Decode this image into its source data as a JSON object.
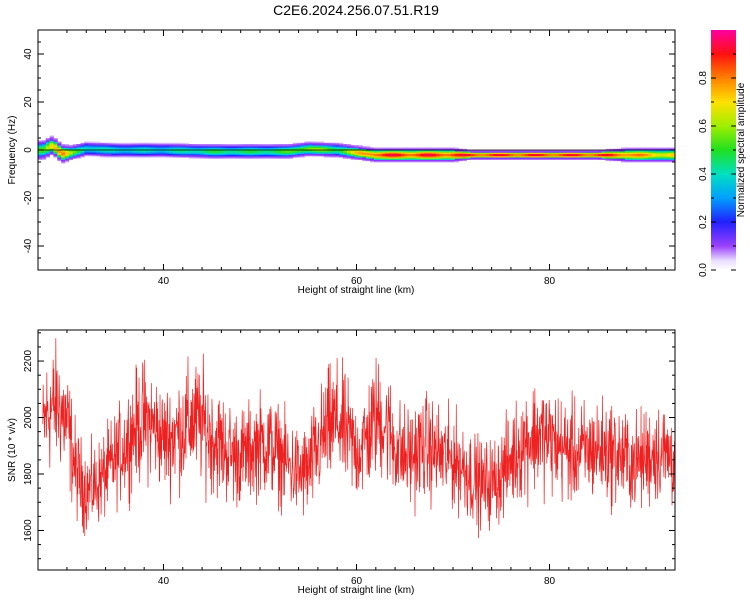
{
  "title": "C2E6.2024.256.07.51.R19",
  "colors": {
    "snr_line": "#ee2020",
    "axes": "#000000",
    "background": "#ffffff"
  },
  "chart_data": [
    {
      "type": "heatmap",
      "xlabel": "Height of straight line (km)",
      "ylabel": "Frequency (Hz)",
      "xlim": [
        27,
        93
      ],
      "ylim": [
        -50,
        50
      ],
      "x_ticks": [
        40,
        60,
        80
      ],
      "y_ticks": [
        -40,
        -20,
        0,
        20,
        40
      ],
      "colorbar": {
        "label": "Normalized spectral amplitude",
        "range": [
          0,
          1
        ],
        "ticks": [
          0.0,
          0.2,
          0.4,
          0.6,
          0.8
        ],
        "tick_labels": [
          "0.0",
          "0.2",
          "0.4",
          "0.6",
          "0.8"
        ],
        "colormap": "rainbow (white-violet-blue-cyan-green-yellow-orange-red-magenta)"
      },
      "ridge": {
        "description": "narrow band of peak amplitude near 0 Hz, drifting slightly negative with height",
        "x": [
          27.5,
          28.5,
          29.5,
          30.5,
          32,
          35,
          40,
          45,
          50,
          53,
          55,
          58,
          61,
          62,
          65,
          70,
          72,
          75,
          80,
          85,
          88,
          90,
          93
        ],
        "center_freq": [
          0.0,
          2.0,
          -1.5,
          -1.0,
          0.5,
          0.0,
          0.0,
          -0.5,
          -0.5,
          -0.5,
          0.5,
          0.0,
          -1.5,
          -2.0,
          -2.0,
          -2.0,
          -2.0,
          -2.0,
          -2.0,
          -2.0,
          -2.0,
          -2.0,
          -2.0
        ],
        "peak_amplitude": [
          0.55,
          0.85,
          0.9,
          0.6,
          0.45,
          0.42,
          0.42,
          0.5,
          0.5,
          0.55,
          0.65,
          0.55,
          0.85,
          0.95,
          0.95,
          0.95,
          0.95,
          0.95,
          0.95,
          0.95,
          0.9,
          0.8,
          0.75
        ],
        "halfwidth_hz": [
          4,
          4,
          4,
          3,
          3,
          3,
          3,
          3,
          3,
          3,
          3,
          3,
          3,
          3,
          3,
          3,
          2,
          2,
          2,
          2,
          3,
          3,
          3
        ]
      },
      "grid": false
    },
    {
      "type": "line",
      "xlabel": "Height of straight line (km)",
      "ylabel": "SNR (10 * v/v)",
      "xlim": [
        27,
        93
      ],
      "ylim": [
        1460,
        2310
      ],
      "x_ticks": [
        40,
        60,
        80
      ],
      "y_ticks": [
        1600,
        1800,
        2000,
        2200
      ],
      "grid": false,
      "series": [
        {
          "x": [
            27.5,
            28,
            29,
            30,
            31,
            32,
            33,
            34,
            35,
            36,
            37,
            38,
            39,
            40,
            41,
            42,
            43,
            44,
            45,
            46,
            47,
            48,
            49,
            50,
            51,
            52,
            53,
            54,
            55,
            56,
            57,
            58,
            59,
            60,
            61,
            62,
            63,
            64,
            65,
            66,
            67,
            68,
            69,
            70,
            71,
            72,
            73,
            74,
            75,
            76,
            77,
            78,
            79,
            80,
            81,
            82,
            83,
            84,
            85,
            86,
            87,
            88,
            89,
            90,
            91,
            92,
            93
          ],
          "mean": [
            1960,
            2020,
            2050,
            1980,
            1800,
            1740,
            1760,
            1800,
            1850,
            1900,
            1960,
            1990,
            1970,
            1920,
            1940,
            1960,
            1990,
            1980,
            1930,
            1900,
            1870,
            1860,
            1880,
            1910,
            1900,
            1870,
            1830,
            1800,
            1810,
            1890,
            1960,
            1990,
            1940,
            1880,
            1920,
            2000,
            1980,
            1900,
            1860,
            1870,
            1900,
            1880,
            1860,
            1850,
            1830,
            1790,
            1760,
            1770,
            1800,
            1850,
            1900,
            1930,
            1940,
            1920,
            1900,
            1880,
            1870,
            1880,
            1890,
            1880,
            1870,
            1850,
            1840,
            1860,
            1880,
            1870,
            1860
          ],
          "spread": [
            110,
            140,
            130,
            130,
            100,
            90,
            90,
            95,
            100,
            110,
            120,
            130,
            120,
            110,
            120,
            125,
            130,
            130,
            120,
            115,
            110,
            105,
            105,
            110,
            110,
            105,
            100,
            100,
            105,
            115,
            125,
            130,
            120,
            110,
            120,
            130,
            125,
            115,
            110,
            110,
            115,
            110,
            105,
            105,
            105,
            100,
            95,
            95,
            100,
            105,
            115,
            120,
            120,
            115,
            115,
            110,
            110,
            110,
            110,
            110,
            110,
            105,
            105,
            110,
            110,
            110,
            110
          ]
        }
      ]
    }
  ]
}
